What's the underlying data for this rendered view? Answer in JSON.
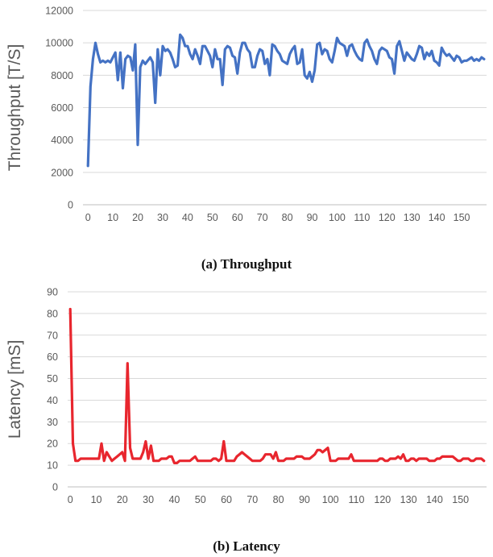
{
  "chart_data": [
    {
      "type": "line",
      "caption": "(a) Throughput",
      "ylabel": "Throughput [T/S]",
      "xlabel": "",
      "ylim": [
        0,
        12000
      ],
      "yticks": [
        0,
        2000,
        4000,
        6000,
        8000,
        10000,
        12000
      ],
      "xlim": [
        -2,
        160
      ],
      "xticks": [
        0,
        10,
        20,
        30,
        40,
        50,
        60,
        70,
        80,
        90,
        100,
        110,
        120,
        130,
        140,
        150
      ],
      "grid": true,
      "color": "#4472c4",
      "series": [
        {
          "x": [
            0,
            1,
            2,
            3,
            4,
            5,
            6,
            7,
            8,
            9,
            10,
            11,
            12,
            13,
            14,
            15,
            16,
            17,
            18,
            19,
            20,
            21,
            22,
            23,
            24,
            25,
            26,
            27,
            28,
            29,
            30,
            31,
            32,
            33,
            34,
            35,
            36,
            37,
            38,
            39,
            40,
            41,
            42,
            43,
            44,
            45,
            46,
            47,
            48,
            49,
            50,
            51,
            52,
            53,
            54,
            55,
            56,
            57,
            58,
            59,
            60,
            61,
            62,
            63,
            64,
            65,
            66,
            67,
            68,
            69,
            70,
            71,
            72,
            73,
            74,
            75,
            76,
            77,
            78,
            79,
            80,
            81,
            82,
            83,
            84,
            85,
            86,
            87,
            88,
            89,
            90,
            91,
            92,
            93,
            94,
            95,
            96,
            97,
            98,
            99,
            100,
            101,
            102,
            103,
            104,
            105,
            106,
            107,
            108,
            109,
            110,
            111,
            112,
            113,
            114,
            115,
            116,
            117,
            118,
            119,
            120,
            121,
            122,
            123,
            124,
            125,
            126,
            127,
            128,
            129,
            130,
            131,
            132,
            133,
            134,
            135,
            136,
            137,
            138,
            139,
            140,
            141,
            142,
            143,
            144,
            145,
            146,
            147,
            148,
            149,
            150,
            151,
            152,
            153,
            154,
            155,
            156,
            157,
            158,
            159
          ],
          "values": [
            2400,
            7300,
            9000,
            10000,
            9300,
            8800,
            8900,
            8800,
            8900,
            8800,
            9100,
            9400,
            7700,
            9400,
            7200,
            9000,
            9200,
            9100,
            8300,
            9900,
            3700,
            8500,
            8900,
            8700,
            8900,
            9100,
            8800,
            6300,
            9600,
            8000,
            9800,
            9500,
            9600,
            9400,
            9000,
            8500,
            8600,
            10500,
            10300,
            9800,
            9800,
            9300,
            9000,
            9600,
            9200,
            8700,
            9800,
            9800,
            9500,
            9200,
            8500,
            9600,
            9000,
            9000,
            7400,
            9600,
            9800,
            9700,
            9200,
            9100,
            8100,
            9400,
            10000,
            10000,
            9600,
            9400,
            8500,
            8500,
            9200,
            9600,
            9500,
            8700,
            9000,
            8000,
            9900,
            9800,
            9500,
            9300,
            8900,
            8800,
            8700,
            9300,
            9600,
            9800,
            8700,
            8800,
            9600,
            8000,
            7800,
            8200,
            7600,
            8300,
            9900,
            10000,
            9300,
            9600,
            9500,
            9000,
            8800,
            9500,
            10300,
            10000,
            9900,
            9800,
            9200,
            9800,
            9900,
            9500,
            9200,
            9000,
            8900,
            10000,
            10200,
            9800,
            9500,
            9000,
            8700,
            9500,
            9700,
            9600,
            9500,
            9100,
            9000,
            8100,
            9800,
            10100,
            9500,
            8900,
            9400,
            9200,
            9000,
            8900,
            9300,
            9800,
            9700,
            9000,
            9400,
            9200,
            9500,
            8900,
            8800,
            8600,
            9700,
            9400,
            9200,
            9300,
            9100,
            8900,
            9200,
            9100,
            8800,
            8900,
            8900,
            9000,
            9100,
            8900,
            9000,
            8900,
            9100,
            9000
          ]
        }
      ]
    },
    {
      "type": "line",
      "caption": "(b) Latency",
      "ylabel": "Latency [mS]",
      "xlabel": "",
      "ylim": [
        0,
        90
      ],
      "yticks": [
        0,
        10,
        20,
        30,
        40,
        50,
        60,
        70,
        80,
        90
      ],
      "xlim": [
        -1,
        160
      ],
      "xticks": [
        0,
        10,
        20,
        30,
        40,
        50,
        60,
        70,
        80,
        90,
        100,
        110,
        120,
        130,
        140,
        150
      ],
      "grid": true,
      "color": "#e8262e",
      "series": [
        {
          "x": [
            0,
            1,
            2,
            3,
            4,
            5,
            6,
            7,
            8,
            9,
            10,
            11,
            12,
            13,
            14,
            15,
            16,
            17,
            18,
            19,
            20,
            21,
            22,
            23,
            24,
            25,
            26,
            27,
            28,
            29,
            30,
            31,
            32,
            33,
            34,
            35,
            36,
            37,
            38,
            39,
            40,
            41,
            42,
            43,
            44,
            45,
            46,
            47,
            48,
            49,
            50,
            51,
            52,
            53,
            54,
            55,
            56,
            57,
            58,
            59,
            60,
            61,
            62,
            63,
            64,
            65,
            66,
            67,
            68,
            69,
            70,
            71,
            72,
            73,
            74,
            75,
            76,
            77,
            78,
            79,
            80,
            81,
            82,
            83,
            84,
            85,
            86,
            87,
            88,
            89,
            90,
            91,
            92,
            93,
            94,
            95,
            96,
            97,
            98,
            99,
            100,
            101,
            102,
            103,
            104,
            105,
            106,
            107,
            108,
            109,
            110,
            111,
            112,
            113,
            114,
            115,
            116,
            117,
            118,
            119,
            120,
            121,
            122,
            123,
            124,
            125,
            126,
            127,
            128,
            129,
            130,
            131,
            132,
            133,
            134,
            135,
            136,
            137,
            138,
            139,
            140,
            141,
            142,
            143,
            144,
            145,
            146,
            147,
            148,
            149,
            150,
            151,
            152,
            153,
            154,
            155,
            156,
            157,
            158,
            159
          ],
          "values": [
            82,
            20,
            12,
            12,
            13,
            13,
            13,
            13,
            13,
            13,
            13,
            13,
            20,
            12,
            16,
            14,
            12,
            13,
            14,
            15,
            16,
            12,
            57,
            18,
            13,
            13,
            13,
            13,
            16,
            21,
            13,
            19,
            12,
            12,
            12,
            13,
            13,
            13,
            14,
            14,
            11,
            11,
            12,
            12,
            12,
            12,
            12,
            13,
            14,
            12,
            12,
            12,
            12,
            12,
            12,
            13,
            13,
            12,
            13,
            21,
            12,
            12,
            12,
            12,
            14,
            15,
            16,
            15,
            14,
            13,
            12,
            12,
            12,
            12,
            13,
            15,
            15,
            15,
            13,
            16,
            12,
            12,
            12,
            13,
            13,
            13,
            13,
            14,
            14,
            14,
            13,
            13,
            13,
            14,
            15,
            17,
            17,
            16,
            17,
            18,
            12,
            12,
            12,
            13,
            13,
            13,
            13,
            13,
            15,
            12,
            12,
            12,
            12,
            12,
            12,
            12,
            12,
            12,
            12,
            13,
            13,
            12,
            12,
            13,
            13,
            13,
            14,
            13,
            15,
            12,
            12,
            13,
            13,
            12,
            13,
            13,
            13,
            13,
            12,
            12,
            12,
            13,
            13,
            14,
            14,
            14,
            14,
            14,
            13,
            12,
            12,
            13,
            13,
            13,
            12,
            12,
            13,
            13,
            13,
            12
          ]
        }
      ]
    }
  ]
}
